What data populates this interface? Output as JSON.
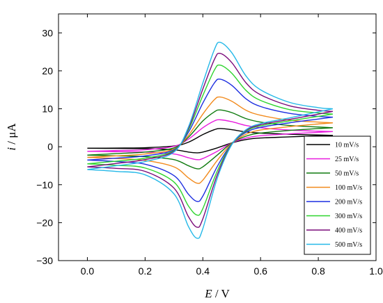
{
  "chart_data": {
    "type": "line",
    "xlabel_var": "E",
    "xlabel_unit": " / V",
    "ylabel_var": "i",
    "ylabel_unit": " / μA",
    "xlim": [
      -0.1,
      1.0
    ],
    "ylim": [
      -30,
      35
    ],
    "x_ticks": [
      0.0,
      0.2,
      0.4,
      0.6,
      0.8,
      1.0
    ],
    "x_tick_labels": [
      "0.0",
      "0.2",
      "0.4",
      "0.6",
      "0.8",
      "1.0"
    ],
    "y_ticks": [
      -30,
      -20,
      -10,
      0,
      10,
      20,
      30
    ],
    "y_tick_labels": [
      "−30",
      "−20",
      "−10",
      "0",
      "10",
      "20",
      "30"
    ],
    "grid": false,
    "legend_position": "bottom-right",
    "series": [
      {
        "name": "10 mV/s",
        "color": "#000000",
        "forward": [
          [
            0.0,
            -0.4
          ],
          [
            0.1,
            -0.35
          ],
          [
            0.2,
            -0.25
          ],
          [
            0.3,
            0.2
          ],
          [
            0.35,
            1.2
          ],
          [
            0.4,
            3.2
          ],
          [
            0.44,
            4.5
          ],
          [
            0.46,
            4.8
          ],
          [
            0.5,
            4.5
          ],
          [
            0.55,
            3.9
          ],
          [
            0.6,
            3.6
          ],
          [
            0.7,
            3.3
          ],
          [
            0.8,
            3.1
          ],
          [
            0.85,
            3.0
          ]
        ],
        "reverse": [
          [
            0.85,
            3.0
          ],
          [
            0.8,
            2.9
          ],
          [
            0.7,
            2.6
          ],
          [
            0.6,
            2.3
          ],
          [
            0.55,
            1.9
          ],
          [
            0.5,
            1.0
          ],
          [
            0.45,
            -0.3
          ],
          [
            0.4,
            -1.4
          ],
          [
            0.38,
            -1.6
          ],
          [
            0.35,
            -1.4
          ],
          [
            0.3,
            -0.8
          ],
          [
            0.2,
            -0.5
          ],
          [
            0.1,
            -0.45
          ],
          [
            0.0,
            -0.4
          ]
        ]
      },
      {
        "name": "25 mV/s",
        "color": "#e81cde",
        "forward": [
          [
            0.0,
            -1.2
          ],
          [
            0.1,
            -1.0
          ],
          [
            0.2,
            -0.8
          ],
          [
            0.3,
            0.1
          ],
          [
            0.35,
            2.0
          ],
          [
            0.4,
            5.0
          ],
          [
            0.44,
            6.8
          ],
          [
            0.46,
            7.1
          ],
          [
            0.5,
            6.6
          ],
          [
            0.55,
            5.6
          ],
          [
            0.6,
            5.0
          ],
          [
            0.7,
            4.4
          ],
          [
            0.8,
            4.1
          ],
          [
            0.85,
            4.0
          ]
        ],
        "reverse": [
          [
            0.85,
            4.0
          ],
          [
            0.8,
            3.8
          ],
          [
            0.7,
            3.4
          ],
          [
            0.6,
            2.9
          ],
          [
            0.55,
            2.3
          ],
          [
            0.5,
            1.0
          ],
          [
            0.45,
            -1.2
          ],
          [
            0.4,
            -3.1
          ],
          [
            0.38,
            -3.4
          ],
          [
            0.35,
            -2.9
          ],
          [
            0.3,
            -1.9
          ],
          [
            0.2,
            -1.4
          ],
          [
            0.1,
            -1.3
          ],
          [
            0.0,
            -1.2
          ]
        ]
      },
      {
        "name": "50 mV/s",
        "color": "#0e7a0e",
        "forward": [
          [
            0.0,
            -2.2
          ],
          [
            0.1,
            -1.8
          ],
          [
            0.2,
            -1.4
          ],
          [
            0.3,
            -0.3
          ],
          [
            0.35,
            2.5
          ],
          [
            0.4,
            6.8
          ],
          [
            0.44,
            9.2
          ],
          [
            0.46,
            9.7
          ],
          [
            0.5,
            9.0
          ],
          [
            0.55,
            7.4
          ],
          [
            0.6,
            6.5
          ],
          [
            0.7,
            5.6
          ],
          [
            0.8,
            5.2
          ],
          [
            0.85,
            5.0
          ]
        ],
        "reverse": [
          [
            0.85,
            5.0
          ],
          [
            0.8,
            4.8
          ],
          [
            0.7,
            4.3
          ],
          [
            0.6,
            3.6
          ],
          [
            0.55,
            2.8
          ],
          [
            0.5,
            1.0
          ],
          [
            0.45,
            -2.2
          ],
          [
            0.4,
            -5.3
          ],
          [
            0.38,
            -5.8
          ],
          [
            0.35,
            -5.0
          ],
          [
            0.3,
            -3.4
          ],
          [
            0.2,
            -2.6
          ],
          [
            0.1,
            -2.4
          ],
          [
            0.0,
            -2.2
          ]
        ]
      },
      {
        "name": "100 mV/s",
        "color": "#f28a1c",
        "forward": [
          [
            0.0,
            -2.8
          ],
          [
            0.1,
            -2.4
          ],
          [
            0.2,
            -1.9
          ],
          [
            0.3,
            -0.6
          ],
          [
            0.35,
            3.0
          ],
          [
            0.4,
            8.6
          ],
          [
            0.44,
            12.4
          ],
          [
            0.46,
            13.1
          ],
          [
            0.5,
            12.0
          ],
          [
            0.55,
            9.6
          ],
          [
            0.6,
            8.3
          ],
          [
            0.7,
            7.0
          ],
          [
            0.8,
            6.5
          ],
          [
            0.85,
            6.3
          ]
        ],
        "reverse": [
          [
            0.85,
            6.3
          ],
          [
            0.8,
            6.0
          ],
          [
            0.7,
            5.3
          ],
          [
            0.6,
            4.4
          ],
          [
            0.55,
            3.3
          ],
          [
            0.5,
            0.9
          ],
          [
            0.45,
            -3.6
          ],
          [
            0.4,
            -8.8
          ],
          [
            0.38,
            -9.6
          ],
          [
            0.35,
            -8.2
          ],
          [
            0.3,
            -5.3
          ],
          [
            0.2,
            -3.6
          ],
          [
            0.1,
            -3.1
          ],
          [
            0.0,
            -2.8
          ]
        ]
      },
      {
        "name": "200 mV/s",
        "color": "#1c2ee0",
        "forward": [
          [
            0.0,
            -3.5
          ],
          [
            0.1,
            -3.0
          ],
          [
            0.2,
            -2.4
          ],
          [
            0.3,
            -0.8
          ],
          [
            0.35,
            3.8
          ],
          [
            0.4,
            11.5
          ],
          [
            0.44,
            16.8
          ],
          [
            0.46,
            17.8
          ],
          [
            0.5,
            16.2
          ],
          [
            0.55,
            12.6
          ],
          [
            0.6,
            10.6
          ],
          [
            0.7,
            8.8
          ],
          [
            0.8,
            8.0
          ],
          [
            0.85,
            7.8
          ]
        ],
        "reverse": [
          [
            0.85,
            7.8
          ],
          [
            0.8,
            7.3
          ],
          [
            0.7,
            6.3
          ],
          [
            0.6,
            5.1
          ],
          [
            0.55,
            3.8
          ],
          [
            0.5,
            0.8
          ],
          [
            0.45,
            -5.2
          ],
          [
            0.4,
            -13.0
          ],
          [
            0.38,
            -14.4
          ],
          [
            0.35,
            -12.5
          ],
          [
            0.3,
            -7.6
          ],
          [
            0.2,
            -4.6
          ],
          [
            0.1,
            -3.9
          ],
          [
            0.0,
            -3.5
          ]
        ]
      },
      {
        "name": "300 mV/s",
        "color": "#2ed42e",
        "forward": [
          [
            0.0,
            -4.5
          ],
          [
            0.1,
            -3.8
          ],
          [
            0.2,
            -3.0
          ],
          [
            0.3,
            -1.0
          ],
          [
            0.35,
            4.4
          ],
          [
            0.4,
            13.5
          ],
          [
            0.44,
            20.2
          ],
          [
            0.46,
            21.5
          ],
          [
            0.5,
            19.4
          ],
          [
            0.55,
            14.8
          ],
          [
            0.6,
            12.2
          ],
          [
            0.7,
            9.8
          ],
          [
            0.8,
            8.9
          ],
          [
            0.85,
            8.6
          ]
        ],
        "reverse": [
          [
            0.85,
            8.6
          ],
          [
            0.8,
            8.0
          ],
          [
            0.7,
            6.8
          ],
          [
            0.6,
            5.5
          ],
          [
            0.55,
            4.1
          ],
          [
            0.5,
            0.7
          ],
          [
            0.45,
            -6.4
          ],
          [
            0.4,
            -16.3
          ],
          [
            0.38,
            -18.0
          ],
          [
            0.35,
            -15.6
          ],
          [
            0.3,
            -9.3
          ],
          [
            0.2,
            -5.6
          ],
          [
            0.1,
            -4.9
          ],
          [
            0.0,
            -4.5
          ]
        ]
      },
      {
        "name": "400 mV/s",
        "color": "#7a0a7a",
        "forward": [
          [
            0.0,
            -5.3
          ],
          [
            0.1,
            -4.4
          ],
          [
            0.2,
            -3.4
          ],
          [
            0.3,
            -1.2
          ],
          [
            0.35,
            4.8
          ],
          [
            0.4,
            15.2
          ],
          [
            0.44,
            23.0
          ],
          [
            0.46,
            24.6
          ],
          [
            0.5,
            22.2
          ],
          [
            0.55,
            16.8
          ],
          [
            0.6,
            13.7
          ],
          [
            0.7,
            10.8
          ],
          [
            0.8,
            9.6
          ],
          [
            0.85,
            9.3
          ]
        ],
        "reverse": [
          [
            0.85,
            9.3
          ],
          [
            0.8,
            8.6
          ],
          [
            0.7,
            7.2
          ],
          [
            0.6,
            5.8
          ],
          [
            0.55,
            4.3
          ],
          [
            0.5,
            0.6
          ],
          [
            0.45,
            -7.4
          ],
          [
            0.4,
            -19.0
          ],
          [
            0.38,
            -21.2
          ],
          [
            0.35,
            -18.4
          ],
          [
            0.3,
            -10.9
          ],
          [
            0.2,
            -6.5
          ],
          [
            0.1,
            -5.7
          ],
          [
            0.0,
            -5.3
          ]
        ]
      },
      {
        "name": "500 mV/s",
        "color": "#24b8e8",
        "forward": [
          [
            0.0,
            -6.0
          ],
          [
            0.1,
            -5.0
          ],
          [
            0.2,
            -3.9
          ],
          [
            0.3,
            -1.4
          ],
          [
            0.35,
            5.2
          ],
          [
            0.4,
            16.8
          ],
          [
            0.44,
            25.6
          ],
          [
            0.46,
            27.5
          ],
          [
            0.5,
            24.8
          ],
          [
            0.55,
            18.6
          ],
          [
            0.6,
            15.0
          ],
          [
            0.7,
            11.7
          ],
          [
            0.8,
            10.3
          ],
          [
            0.85,
            10.0
          ]
        ],
        "reverse": [
          [
            0.85,
            10.0
          ],
          [
            0.8,
            9.2
          ],
          [
            0.7,
            7.6
          ],
          [
            0.6,
            6.1
          ],
          [
            0.55,
            4.5
          ],
          [
            0.5,
            0.5
          ],
          [
            0.45,
            -8.3
          ],
          [
            0.4,
            -21.6
          ],
          [
            0.38,
            -24.1
          ],
          [
            0.35,
            -21.0
          ],
          [
            0.3,
            -12.4
          ],
          [
            0.2,
            -7.4
          ],
          [
            0.1,
            -6.5
          ],
          [
            0.0,
            -6.0
          ]
        ]
      }
    ]
  }
}
